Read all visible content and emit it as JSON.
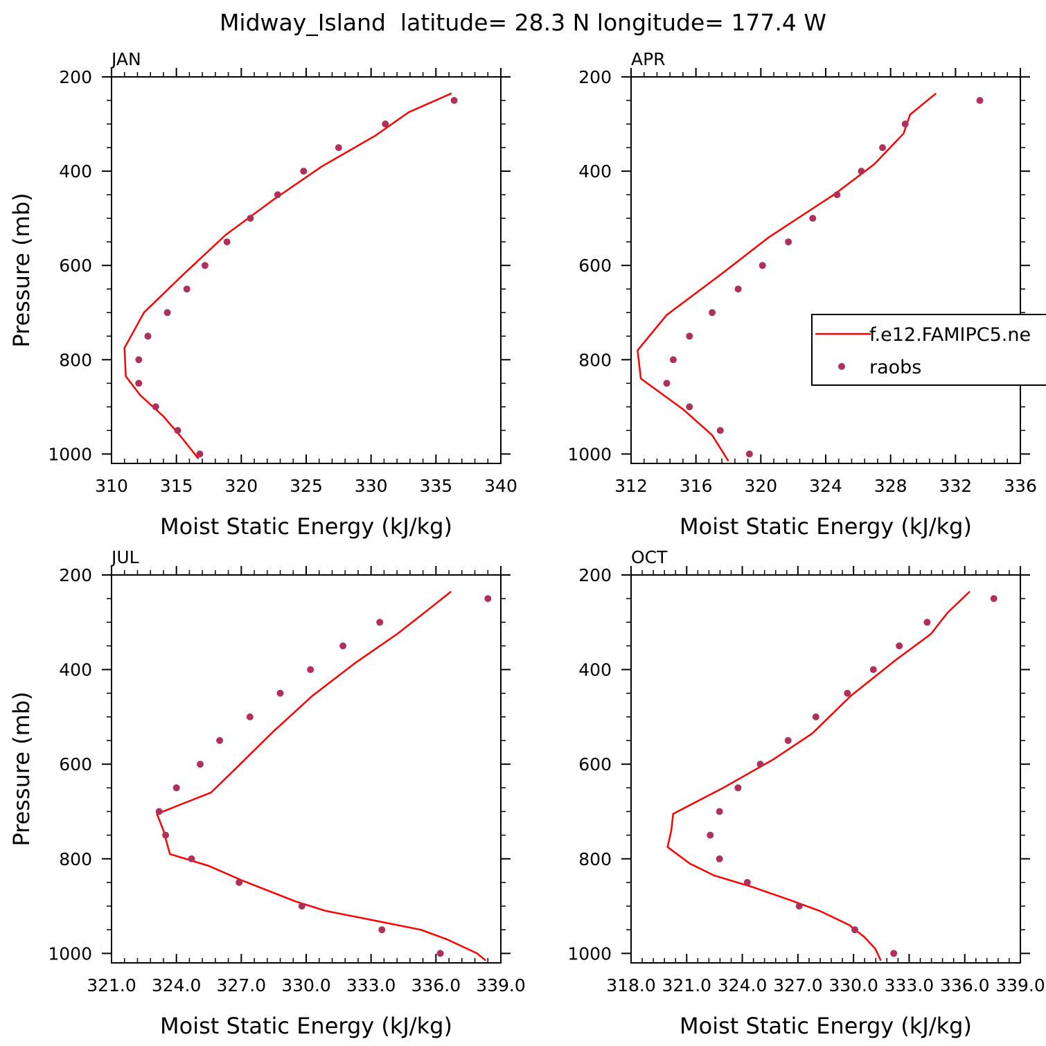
{
  "figure_title": "Midway_Island  latitude= 28.3 N longitude= 177.4 W",
  "colors": {
    "model_line": "#ff0000",
    "raobs_marker": "#b0305a",
    "axes": "#000000",
    "background": "#ffffff"
  },
  "legend": {
    "model_label": "f.e12.FAMIPC5.ne",
    "obs_label": "raobs",
    "placement": "APR panel, middle-right, clipped at figure edge"
  },
  "chart_data": [
    {
      "type": "line",
      "panel_label": "JAN",
      "xlabel": "Moist Static Energy (kJ/kg)",
      "ylabel": "Pressure (mb)",
      "xlim": [
        310,
        340
      ],
      "ylim": [
        1020,
        200
      ],
      "x_ticks": [
        310,
        315,
        320,
        325,
        330,
        335,
        340
      ],
      "x_tick_labels": [
        "310",
        "315",
        "320",
        "325",
        "330",
        "335",
        "340"
      ],
      "y_ticks": [
        200,
        400,
        600,
        800,
        1000
      ],
      "y_tick_labels": [
        "200",
        "400",
        "600",
        "800",
        "1000"
      ],
      "series": [
        {
          "name": "f.e12.FAMIPC5.ne",
          "style": "line",
          "points": [
            [
              316.7,
              1010
            ],
            [
              315.4,
              965
            ],
            [
              314.0,
              920
            ],
            [
              312.2,
              875
            ],
            [
              311.1,
              835
            ],
            [
              311.0,
              775
            ],
            [
              312.5,
              700
            ],
            [
              315.5,
              620
            ],
            [
              318.8,
              535
            ],
            [
              322.5,
              460
            ],
            [
              326.2,
              390
            ],
            [
              330.3,
              325
            ],
            [
              332.9,
              275
            ],
            [
              336.2,
              235
            ]
          ]
        },
        {
          "name": "raobs",
          "style": "markers",
          "points": [
            [
              316.8,
              1000
            ],
            [
              315.1,
              950
            ],
            [
              313.4,
              900
            ],
            [
              312.1,
              850
            ],
            [
              312.1,
              800
            ],
            [
              312.8,
              750
            ],
            [
              314.3,
              700
            ],
            [
              315.8,
              650
            ],
            [
              317.2,
              600
            ],
            [
              318.9,
              550
            ],
            [
              320.7,
              500
            ],
            [
              322.8,
              450
            ],
            [
              324.8,
              400
            ],
            [
              327.5,
              350
            ],
            [
              331.1,
              300
            ],
            [
              336.4,
              250
            ]
          ]
        }
      ]
    },
    {
      "type": "line",
      "panel_label": "APR",
      "xlabel": "Moist Static Energy (kJ/kg)",
      "ylabel": "",
      "xlim": [
        312,
        336
      ],
      "ylim": [
        1020,
        200
      ],
      "x_ticks": [
        312,
        316,
        320,
        324,
        328,
        332,
        336
      ],
      "x_tick_labels": [
        "312",
        "316",
        "320",
        "324",
        "328",
        "332",
        "336"
      ],
      "y_ticks": [
        200,
        400,
        600,
        800,
        1000
      ],
      "y_tick_labels": [
        "200",
        "400",
        "600",
        "800",
        "1000"
      ],
      "series": [
        {
          "name": "f.e12.FAMIPC5.ne",
          "style": "line",
          "points": [
            [
              318.0,
              1015
            ],
            [
              317.0,
              960
            ],
            [
              315.2,
              905
            ],
            [
              312.6,
              840
            ],
            [
              312.4,
              780
            ],
            [
              314.2,
              705
            ],
            [
              317.5,
              620
            ],
            [
              320.5,
              540
            ],
            [
              324.5,
              450
            ],
            [
              327.0,
              385
            ],
            [
              328.8,
              320
            ],
            [
              329.2,
              280
            ],
            [
              330.8,
              235
            ]
          ]
        },
        {
          "name": "raobs",
          "style": "markers",
          "points": [
            [
              319.3,
              1000
            ],
            [
              317.5,
              950
            ],
            [
              315.6,
              900
            ],
            [
              314.2,
              850
            ],
            [
              314.6,
              800
            ],
            [
              315.6,
              750
            ],
            [
              317.0,
              700
            ],
            [
              318.6,
              650
            ],
            [
              320.1,
              600
            ],
            [
              321.7,
              550
            ],
            [
              323.2,
              500
            ],
            [
              324.7,
              450
            ],
            [
              326.2,
              400
            ],
            [
              327.5,
              350
            ],
            [
              328.9,
              300
            ],
            [
              333.5,
              250
            ]
          ]
        }
      ]
    },
    {
      "type": "line",
      "panel_label": "JUL",
      "xlabel": "Moist Static Energy (kJ/kg)",
      "ylabel": "Pressure (mb)",
      "xlim": [
        321,
        339
      ],
      "ylim": [
        1020,
        200
      ],
      "x_ticks": [
        321,
        324,
        327,
        330,
        333,
        336,
        339
      ],
      "x_tick_labels": [
        "321.0",
        "324.0",
        "327.0",
        "330.0",
        "333.0",
        "336.0",
        "339.0"
      ],
      "y_ticks": [
        200,
        400,
        600,
        800,
        1000
      ],
      "y_tick_labels": [
        "200",
        "400",
        "600",
        "800",
        "1000"
      ],
      "series": [
        {
          "name": "f.e12.FAMIPC5.ne",
          "style": "line",
          "points": [
            [
              338.3,
              1015
            ],
            [
              337.9,
              1000
            ],
            [
              336.5,
              970
            ],
            [
              335.3,
              950
            ],
            [
              333.1,
              930
            ],
            [
              330.9,
              910
            ],
            [
              329.5,
              890
            ],
            [
              327.0,
              845
            ],
            [
              325.5,
              815
            ],
            [
              323.7,
              790
            ],
            [
              323.4,
              740
            ],
            [
              323.1,
              705
            ],
            [
              325.6,
              660
            ],
            [
              326.5,
              620
            ],
            [
              328.5,
              530
            ],
            [
              330.3,
              455
            ],
            [
              332.3,
              385
            ],
            [
              334.2,
              325
            ],
            [
              335.6,
              275
            ],
            [
              336.7,
              235
            ]
          ]
        },
        {
          "name": "raobs",
          "style": "markers",
          "points": [
            [
              336.2,
              1000
            ],
            [
              333.5,
              950
            ],
            [
              329.8,
              900
            ],
            [
              326.9,
              850
            ],
            [
              324.7,
              800
            ],
            [
              323.5,
              750
            ],
            [
              323.2,
              700
            ],
            [
              324.0,
              650
            ],
            [
              325.1,
              600
            ],
            [
              326.0,
              550
            ],
            [
              327.4,
              500
            ],
            [
              328.8,
              450
            ],
            [
              330.2,
              400
            ],
            [
              331.7,
              350
            ],
            [
              333.4,
              300
            ],
            [
              338.4,
              250
            ]
          ]
        }
      ]
    },
    {
      "type": "line",
      "panel_label": "OCT",
      "xlabel": "Moist Static Energy (kJ/kg)",
      "ylabel": "",
      "xlim": [
        318.03,
        339.03
      ],
      "ylim": [
        1020,
        200
      ],
      "x_ticks": [
        318.03,
        321.03,
        324.03,
        327.03,
        330.03,
        333.03,
        336.03,
        339.03
      ],
      "x_tick_labels": [
        "318.0",
        "321.0",
        "324.0",
        "327.0",
        "330.0",
        "333.0",
        "336.0",
        "339.0"
      ],
      "y_ticks": [
        200,
        400,
        600,
        800,
        1000
      ],
      "y_tick_labels": [
        "200",
        "400",
        "600",
        "800",
        "1000"
      ],
      "series": [
        {
          "name": "f.e12.FAMIPC5.ne",
          "style": "line",
          "points": [
            [
              331.5,
              1015
            ],
            [
              331.2,
              990
            ],
            [
              330.6,
              965
            ],
            [
              329.8,
              940
            ],
            [
              328.2,
              910
            ],
            [
              326.8,
              890
            ],
            [
              324.6,
              860
            ],
            [
              322.5,
              835
            ],
            [
              321.2,
              810
            ],
            [
              320.0,
              775
            ],
            [
              320.2,
              740
            ],
            [
              320.3,
              705
            ],
            [
              323.0,
              650
            ],
            [
              325.7,
              590
            ],
            [
              327.8,
              535
            ],
            [
              329.9,
              455
            ],
            [
              332.3,
              380
            ],
            [
              334.2,
              325
            ],
            [
              335.1,
              280
            ],
            [
              336.3,
              235
            ]
          ]
        },
        {
          "name": "raobs",
          "style": "markers",
          "points": [
            [
              332.2,
              1000
            ],
            [
              330.1,
              950
            ],
            [
              327.1,
              900
            ],
            [
              324.3,
              850
            ],
            [
              322.8,
              800
            ],
            [
              322.3,
              750
            ],
            [
              322.8,
              700
            ],
            [
              323.8,
              650
            ],
            [
              325.0,
              600
            ],
            [
              326.5,
              550
            ],
            [
              328.0,
              500
            ],
            [
              329.7,
              450
            ],
            [
              331.1,
              400
            ],
            [
              332.5,
              350
            ],
            [
              334.0,
              300
            ],
            [
              337.6,
              250
            ]
          ]
        }
      ]
    }
  ]
}
